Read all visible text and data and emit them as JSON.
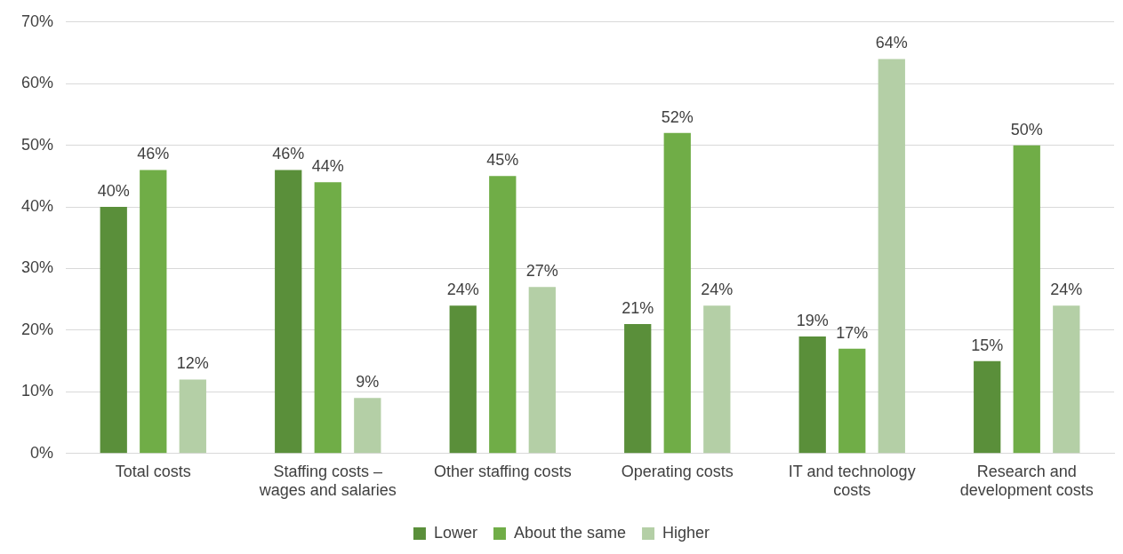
{
  "chart_data": {
    "type": "bar",
    "categories": [
      "Total costs",
      "Staffing costs – wages and salaries",
      "Other staffing costs",
      "Operating costs",
      "IT and technology costs",
      "Research and development costs"
    ],
    "series": [
      {
        "name": "Lower",
        "color": "#5a8f3a",
        "values": [
          40,
          46,
          24,
          21,
          19,
          15
        ],
        "value_labels": [
          "40%",
          "46%",
          "24%",
          "21%",
          "19%",
          "15%"
        ]
      },
      {
        "name": "About the same",
        "color": "#70ad47",
        "values": [
          46,
          44,
          45,
          52,
          17,
          50
        ],
        "value_labels": [
          "46%",
          "44%",
          "45%",
          "52%",
          "17%",
          "50%"
        ]
      },
      {
        "name": "Higher",
        "color": "#b4cfa6",
        "values": [
          12,
          9,
          27,
          24,
          64,
          24
        ],
        "value_labels": [
          "12%",
          "9%",
          "27%",
          "24%",
          "64%",
          "24%"
        ]
      }
    ],
    "ylim": [
      0,
      70
    ],
    "yticks": [
      {
        "value": 0,
        "label": "0%"
      },
      {
        "value": 10,
        "label": "10%"
      },
      {
        "value": 20,
        "label": "20%"
      },
      {
        "value": 30,
        "label": "30%"
      },
      {
        "value": 40,
        "label": "40%"
      },
      {
        "value": 50,
        "label": "50%"
      },
      {
        "value": 60,
        "label": "60%"
      },
      {
        "value": 70,
        "label": "70%"
      }
    ],
    "grid": "y",
    "legend": "bottom"
  }
}
